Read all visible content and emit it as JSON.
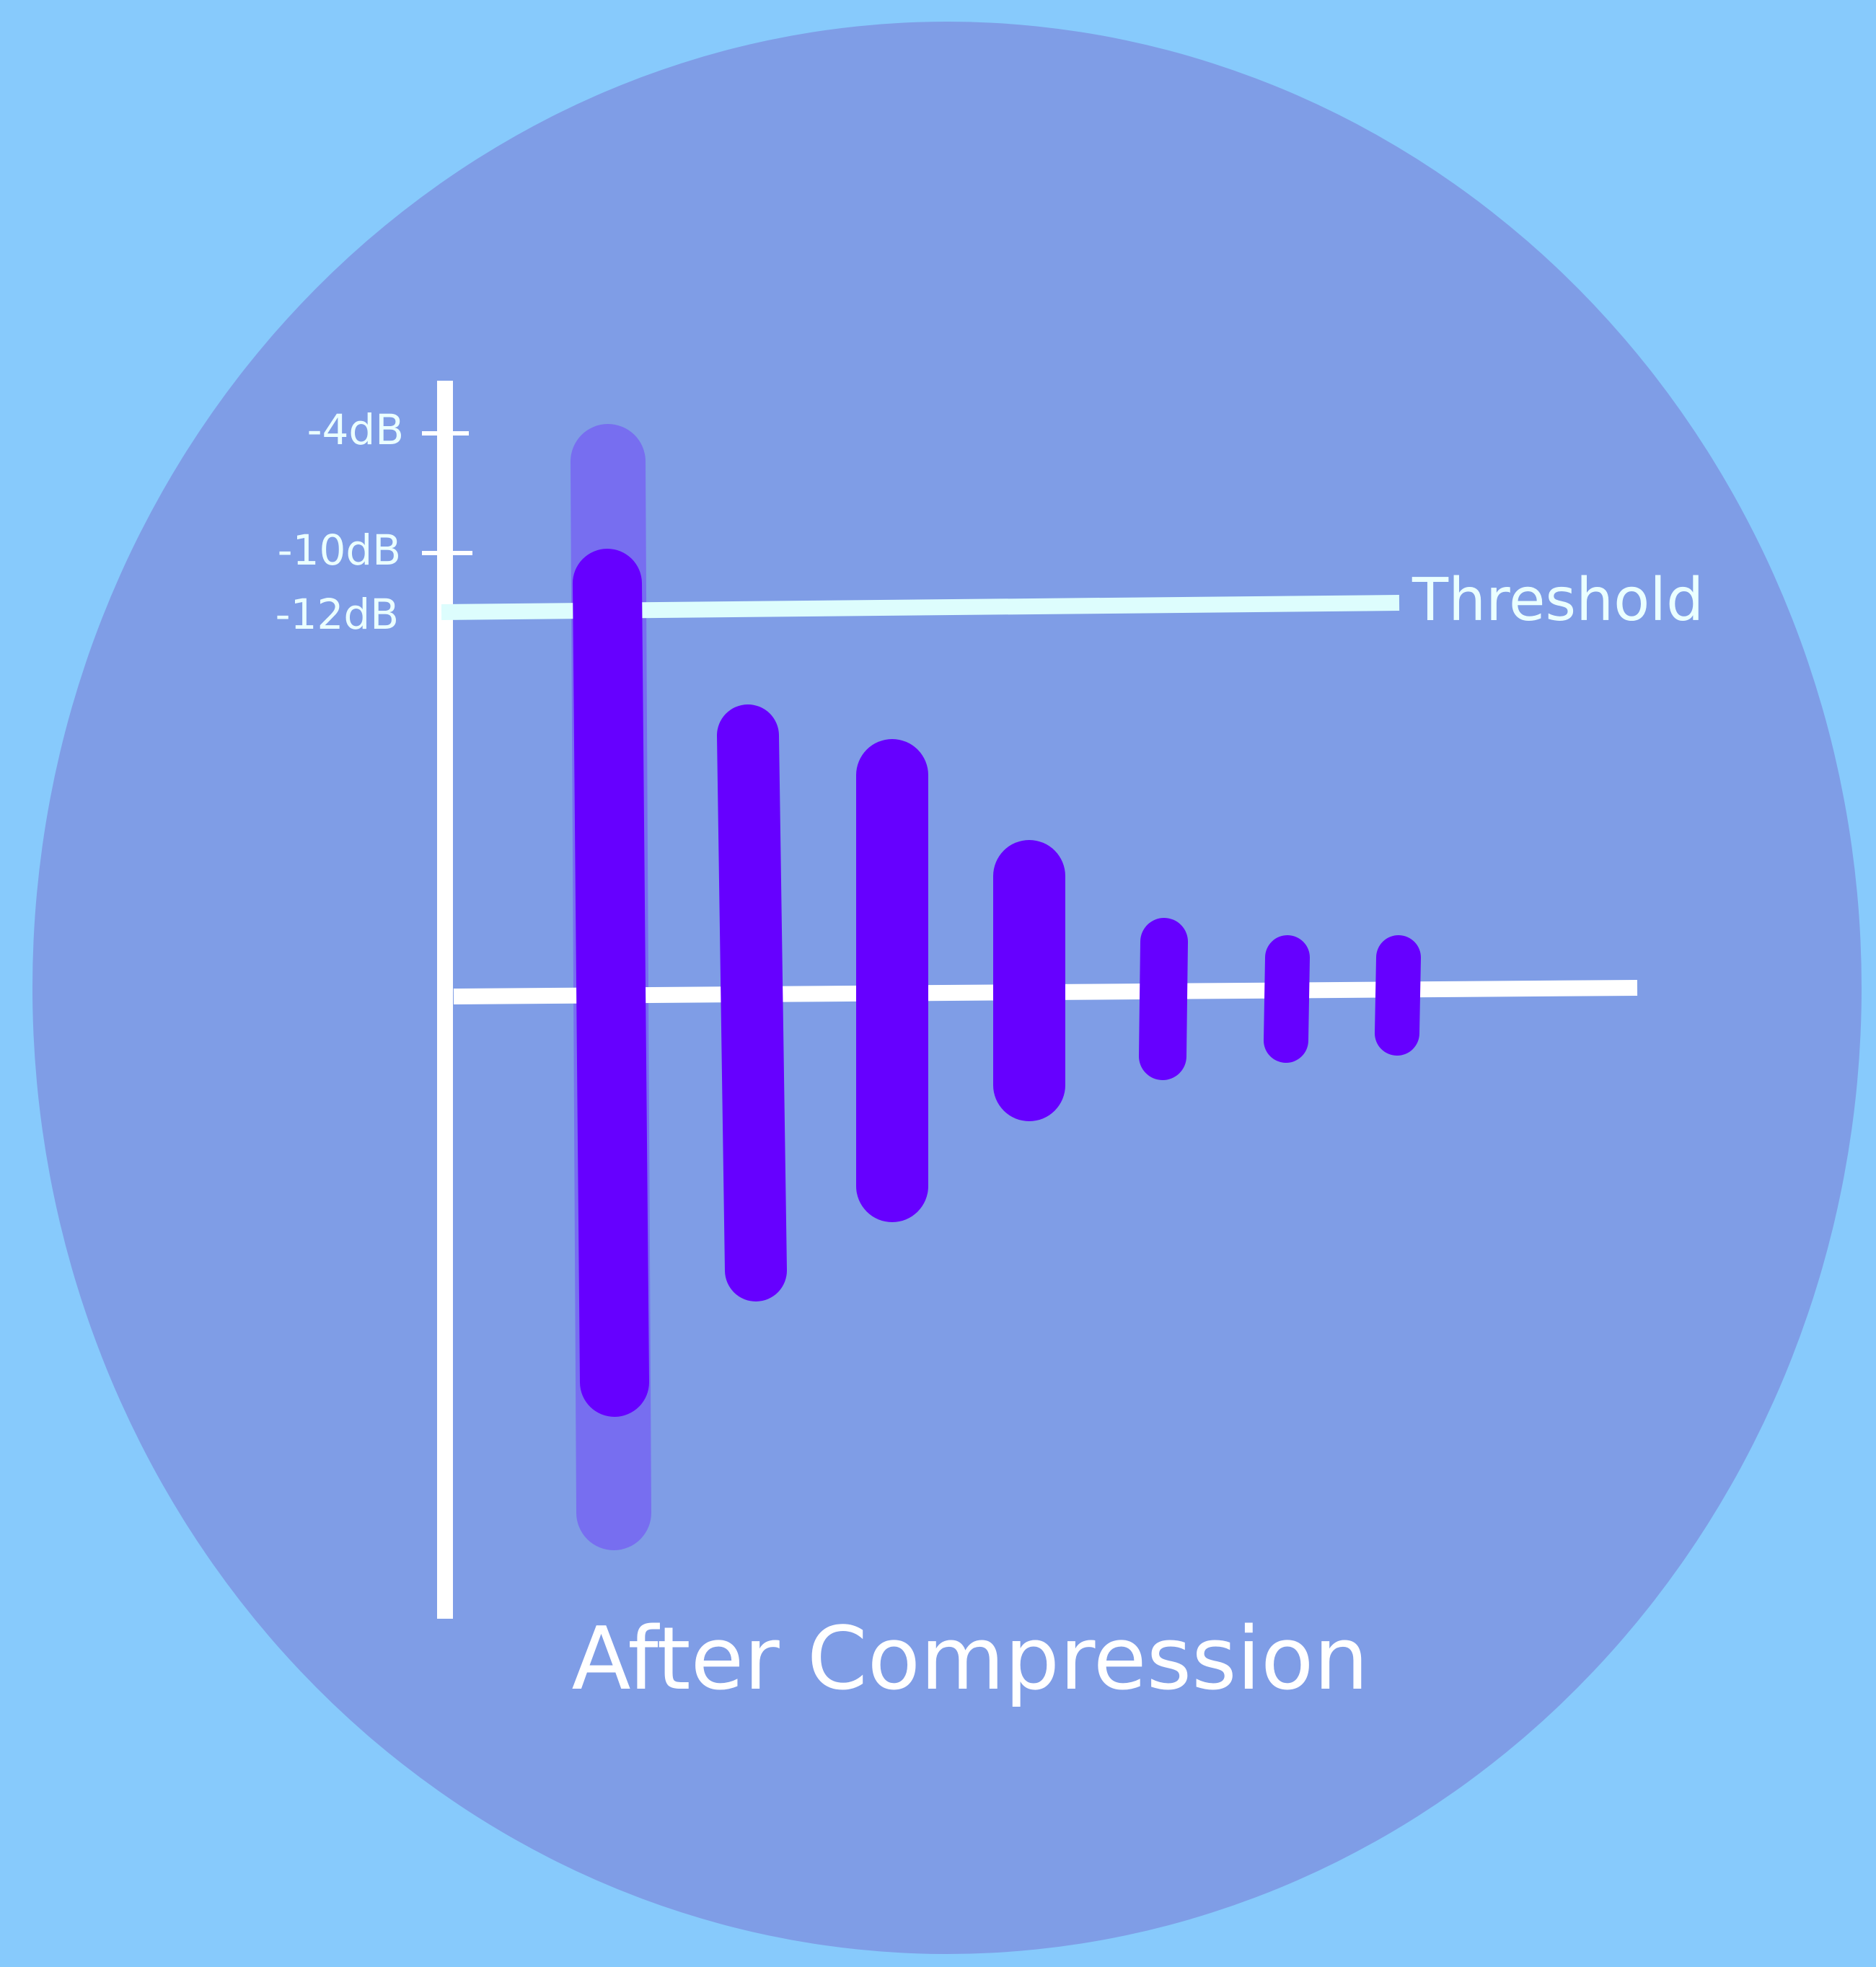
{
  "colors": {
    "background": "#87cafc",
    "circle": "#7f9de6",
    "axis": "#ffffff",
    "threshold": "#ddfdfd",
    "bar": "#6600ff",
    "ghost_bar": "#776ef0",
    "tick_label": "#eaffff",
    "title": "#ffffff"
  },
  "diagram": {
    "title": "After Compression",
    "threshold_label": "Threshold",
    "level_labels": [
      {
        "text": "-4dB"
      },
      {
        "text": "-10dB"
      },
      {
        "text": "-12dB"
      }
    ],
    "original_peak_shown": true,
    "bars_count": 7
  }
}
